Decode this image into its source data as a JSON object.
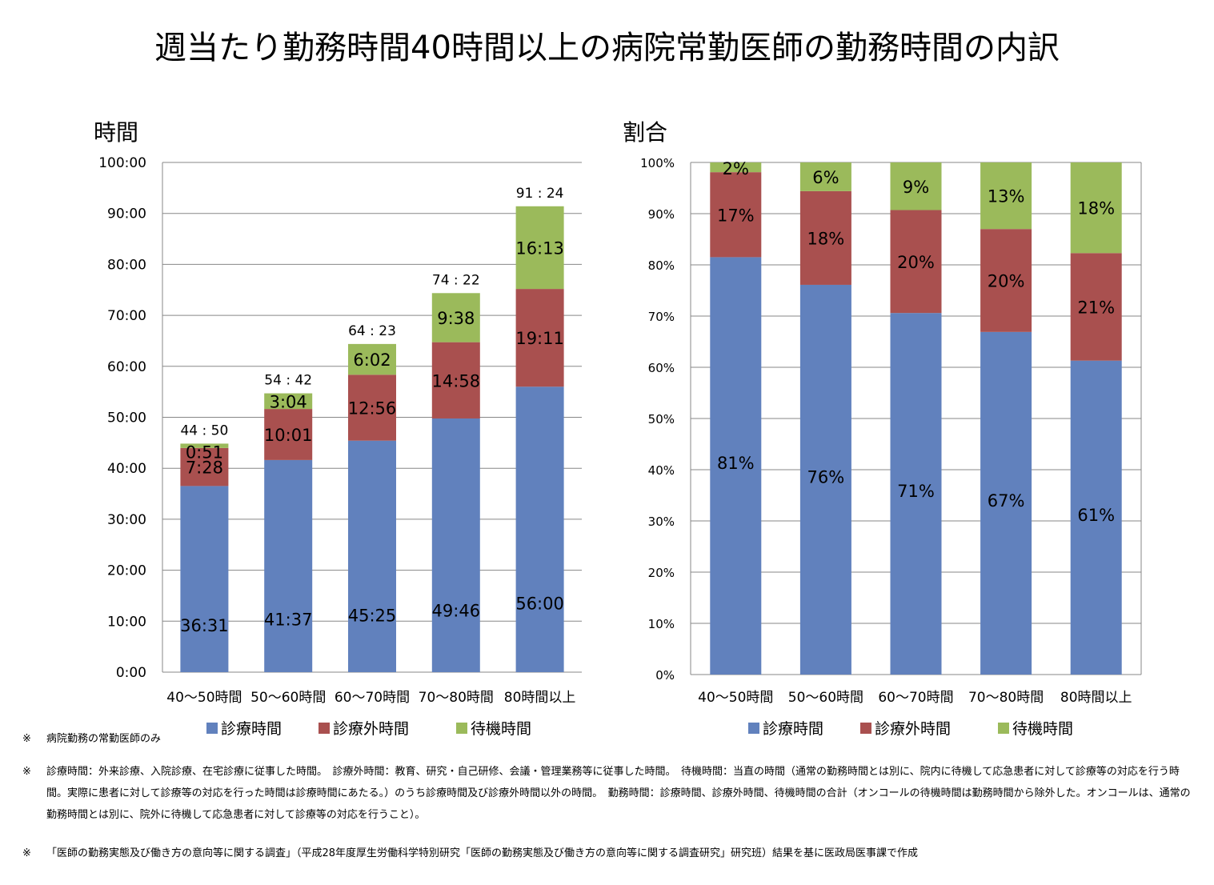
{
  "title": "週当たり勤務時間40時間以上の病院常勤医師の勤務時間の内訳",
  "colors": {
    "shinryo": "#6181BD",
    "gai": "#A9504F",
    "taiki": "#9BBA5B",
    "grid": "#878787"
  },
  "legend": [
    "診療時間",
    "診療外時間",
    "待機時間"
  ],
  "chart_data": [
    {
      "type": "bar",
      "stacked": true,
      "panel_label": "時間",
      "categories": [
        "40〜50時間",
        "50〜60時間",
        "60〜70時間",
        "70〜80時間",
        "80時間以上"
      ],
      "y_ticks": [
        "0:00",
        "10:00",
        "20:00",
        "30:00",
        "40:00",
        "50:00",
        "60:00",
        "70:00",
        "80:00",
        "90:00",
        "100:00"
      ],
      "ylim_minutes": [
        0,
        6000
      ],
      "series": [
        {
          "name": "診療時間",
          "values_minutes": [
            2191,
            2497,
            2725,
            2986,
            3360
          ],
          "labels": [
            "36:31",
            "41:37",
            "45:25",
            "49:46",
            "56:00"
          ]
        },
        {
          "name": "診療外時間",
          "values_minutes": [
            448,
            601,
            776,
            898,
            1151
          ],
          "labels": [
            "7:28",
            "10:01",
            "12:56",
            "14:58",
            "19:11"
          ]
        },
        {
          "name": "待機時間",
          "values_minutes": [
            51,
            184,
            362,
            578,
            973
          ],
          "labels": [
            "0:51",
            "3:04",
            "6:02",
            "9:38",
            "16:13"
          ]
        }
      ],
      "totals": [
        "44 : 50",
        "54 : 42",
        "64 : 23",
        "74 : 22",
        "91 : 24"
      ],
      "legend_position": "bottom",
      "grid": true
    },
    {
      "type": "bar",
      "stacked": true,
      "percent": true,
      "panel_label": "割合",
      "categories": [
        "40〜50時間",
        "50〜60時間",
        "60〜70時間",
        "70〜80時間",
        "80時間以上"
      ],
      "y_ticks": [
        "0%",
        "10%",
        "20%",
        "30%",
        "40%",
        "50%",
        "60%",
        "70%",
        "80%",
        "90%",
        "100%"
      ],
      "ylim": [
        0,
        100
      ],
      "series": [
        {
          "name": "診療時間",
          "values": [
            81.5,
            76.1,
            70.6,
            66.9,
            61.3
          ],
          "labels": [
            "81%",
            "76%",
            "71%",
            "67%",
            "61%"
          ]
        },
        {
          "name": "診療外時間",
          "values": [
            16.6,
            18.3,
            20.1,
            20.1,
            21.0
          ],
          "labels": [
            "17%",
            "18%",
            "20%",
            "20%",
            "21%"
          ]
        },
        {
          "name": "待機時間",
          "values": [
            1.9,
            5.6,
            9.3,
            13.0,
            17.7
          ],
          "labels": [
            "2%",
            "6%",
            "9%",
            "13%",
            "18%"
          ]
        }
      ],
      "legend_position": "bottom",
      "grid": true
    }
  ],
  "notes": {
    "mark": "※",
    "note1": "病院勤務の常勤医師のみ",
    "note2": "診療時間：外来診療、入院診療、在宅診療に従事した時間。　診療外時間：教育、研究・自己研修、会議・管理業務等に従事した時間。　待機時間：当直の時間（通常の勤務時間とは別に、院内に待機して応急患者に対して診療等の対応を行う時間。実際に患者に対して診療等の対応を行った時間は診療時間にあたる。）のうち診療時間及び診療外時間以外の時間。　勤務時間：診療時間、診療外時間、待機時間の合計（オンコールの待機時間は勤務時間から除外した。オンコールは、通常の勤務時間とは別に、院外に待機して応急患者に対して診療等の対応を行うこと）。",
    "note3": "「医師の勤務実態及び働き方の意向等に関する調査」（平成28年度厚生労働科学特別研究「医師の勤務実態及び働き方の意向等に関する調査研究」研究班）結果を基に医政局医事課で作成"
  }
}
